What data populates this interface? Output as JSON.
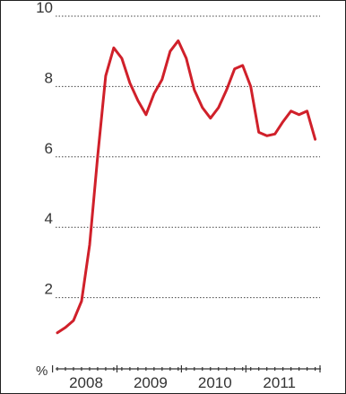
{
  "chart_data": {
    "type": "line",
    "y_unit": "%",
    "ylim": [
      0,
      10
    ],
    "y_ticks": [
      2,
      4,
      6,
      8,
      10
    ],
    "y_tick_labels": [
      "2",
      "4",
      "6",
      "8",
      "10"
    ],
    "x_tick_labels": [
      "2008",
      "2009",
      "2010",
      "2011"
    ],
    "grid": "horizontal dotted",
    "colors": {
      "series": "#d0202a"
    },
    "series": [
      {
        "x": [
          2007.875,
          2008.0,
          2008.125,
          2008.25,
          2008.375,
          2008.5,
          2008.625,
          2008.75,
          2008.875,
          2009.0,
          2009.125,
          2009.25,
          2009.375,
          2009.5,
          2009.625,
          2009.75,
          2009.875,
          2010.0,
          2010.125,
          2010.25,
          2010.375,
          2010.5,
          2010.625,
          2010.75,
          2010.875,
          2011.0,
          2011.125,
          2011.25,
          2011.375,
          2011.5,
          2011.625,
          2011.75,
          2011.875
        ],
        "values": [
          1.0,
          1.15,
          1.35,
          1.9,
          3.5,
          6.0,
          8.3,
          9.1,
          8.8,
          8.1,
          7.6,
          7.2,
          7.8,
          8.2,
          9.0,
          9.3,
          8.8,
          7.9,
          7.4,
          7.1,
          7.4,
          7.9,
          8.5,
          8.6,
          8.0,
          6.7,
          6.6,
          6.65,
          7.0,
          7.3,
          7.2,
          7.3,
          6.5
        ]
      }
    ]
  }
}
